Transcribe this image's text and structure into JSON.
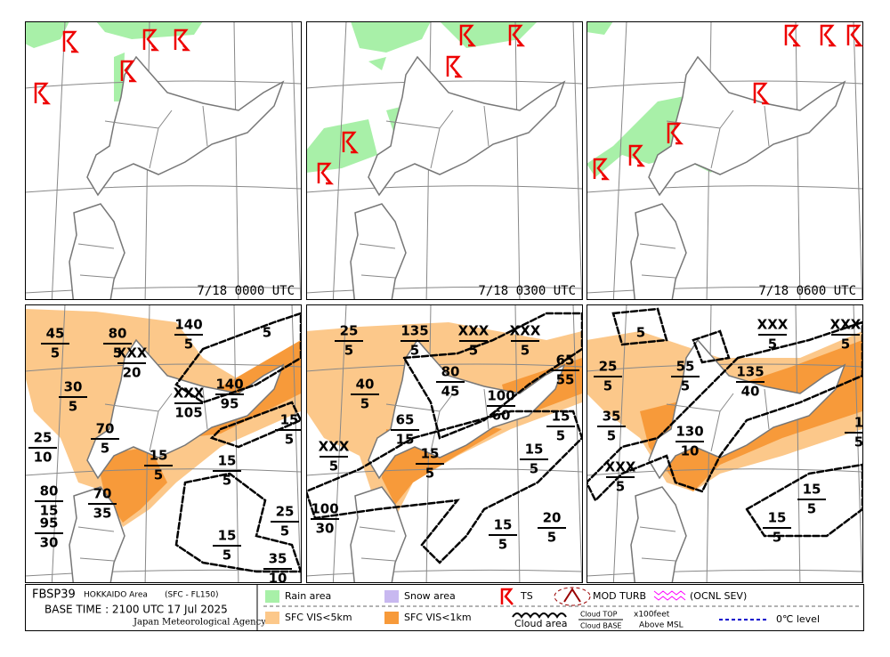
{
  "header": {
    "code": "FBSP39",
    "area": "HOKKAIDO Area",
    "layer": "(SFC - FL150)",
    "base_time": "BASE TIME : 2100 UTC 17 Jul 2025",
    "agency": "Japan Meteorological Agency"
  },
  "top_panels": [
    {
      "time": "7/18 0000 UTC"
    },
    {
      "time": "7/18 0300 UTC"
    },
    {
      "time": "7/18 0600 UTC"
    }
  ],
  "bottom_panels": [
    {
      "labels": [
        {
          "top": "45",
          "base": "5"
        },
        {
          "top": "80",
          "base": "5"
        },
        {
          "top": "140",
          "base": "5"
        },
        {
          "base": "5"
        },
        {
          "top": "XXX",
          "base": "20"
        },
        {
          "top": "30",
          "base": "5"
        },
        {
          "top": "XXX",
          "base": "105"
        },
        {
          "top": "140",
          "base": "95"
        },
        {
          "top": "25",
          "base": "10"
        },
        {
          "top": "70",
          "base": "5"
        },
        {
          "top": "15",
          "base": "5"
        },
        {
          "top": "15",
          "base": "5"
        },
        {
          "top": "15",
          "base": "5"
        },
        {
          "top": "80",
          "base": "15"
        },
        {
          "top": "70",
          "base": "35"
        },
        {
          "top": "95",
          "base": "30"
        },
        {
          "top": "25",
          "base": "5"
        },
        {
          "top": "15",
          "base": "5"
        },
        {
          "top": "35",
          "base": "10"
        }
      ]
    },
    {
      "labels": [
        {
          "top": "25",
          "base": "5"
        },
        {
          "top": "135",
          "base": "5"
        },
        {
          "top": "XXX",
          "base": "5"
        },
        {
          "top": "XXX",
          "base": "5"
        },
        {
          "top": "80",
          "base": "45"
        },
        {
          "top": "40",
          "base": "5"
        },
        {
          "top": "65",
          "base": "55"
        },
        {
          "top": "100",
          "base": "60"
        },
        {
          "top": "65",
          "base": "15"
        },
        {
          "top": "15",
          "base": "5"
        },
        {
          "top": "XXX",
          "base": "5"
        },
        {
          "top": "15",
          "base": "5"
        },
        {
          "top": "15",
          "base": "5"
        },
        {
          "top": "100",
          "base": "30"
        },
        {
          "top": "15",
          "base": "5"
        },
        {
          "top": "20",
          "base": "5"
        }
      ]
    },
    {
      "labels": [
        {
          "base": "5"
        },
        {
          "top": "XXX",
          "base": "5"
        },
        {
          "top": "XXX",
          "base": "5"
        },
        {
          "top": "25",
          "base": "5"
        },
        {
          "top": "55",
          "base": "5"
        },
        {
          "top": "135",
          "base": "40"
        },
        {
          "top": "35",
          "base": "5"
        },
        {
          "top": "130",
          "base": "10"
        },
        {
          "top": "1",
          "base": "5"
        },
        {
          "top": "XXX",
          "base": "5"
        },
        {
          "top": "15",
          "base": "5"
        },
        {
          "top": "15",
          "base": "5"
        }
      ]
    }
  ],
  "legend": {
    "rain": "Rain area",
    "snow": "Snow area",
    "ts": "TS",
    "turb": "MOD TURB",
    "turb_sev": "(OCNL SEV)",
    "vis5": "SFC VIS<5km",
    "vis1": "SFC VIS<1km",
    "cloud": "Cloud area",
    "cloud_top": "Cloud TOP",
    "cloud_base": "Cloud BASE",
    "unit": "x100feet",
    "msl": "Above MSL",
    "freeze": "0℃ level"
  }
}
